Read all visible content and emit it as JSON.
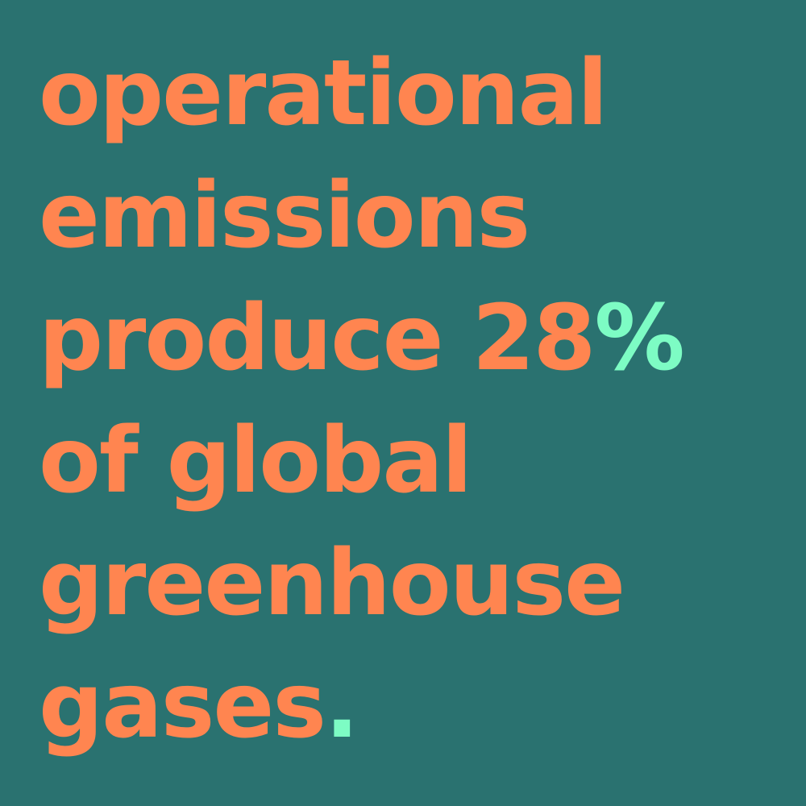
{
  "colors": {
    "background": "#2a7270",
    "text": "#ff8550",
    "accent": "#7dfcc4"
  },
  "headline": {
    "line1": "operational",
    "line2": "emissions",
    "line3_text": "produce 28",
    "line3_accent": "%",
    "line4": "of global",
    "line5": "greenhouse",
    "line6_text": "gases",
    "line6_accent": "."
  }
}
